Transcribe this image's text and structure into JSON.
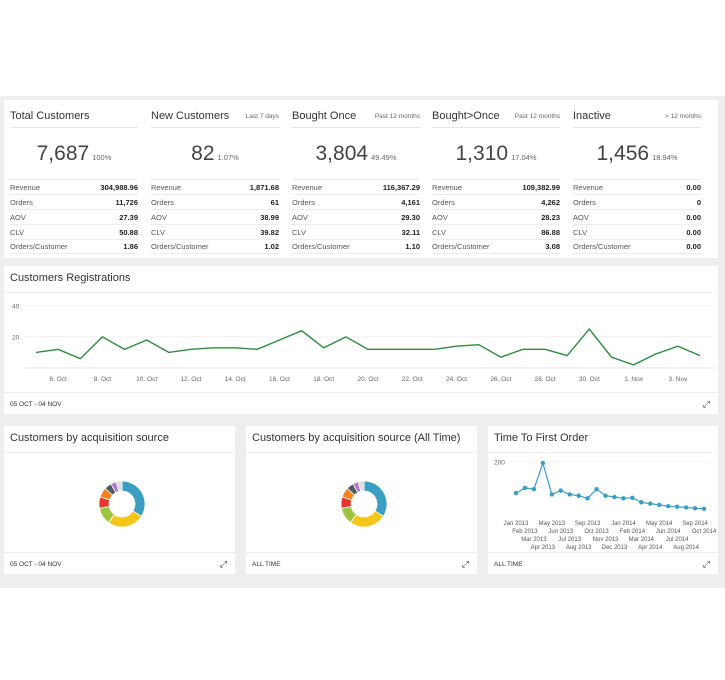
{
  "stats": [
    {
      "title": "Total Customers",
      "period": "",
      "value": "7,687",
      "pct": "100%",
      "rows": [
        [
          "Revenue",
          "304,988.96"
        ],
        [
          "Orders",
          "11,726"
        ],
        [
          "AOV",
          "27.39"
        ],
        [
          "CLV",
          "50.88"
        ],
        [
          "Orders/Customer",
          "1.86"
        ]
      ]
    },
    {
      "title": "New Customers",
      "period": "Last 7 days",
      "value": "82",
      "pct": "1.07%",
      "rows": [
        [
          "Revenue",
          "1,871.68"
        ],
        [
          "Orders",
          "61"
        ],
        [
          "AOV",
          "38.99"
        ],
        [
          "CLV",
          "39.82"
        ],
        [
          "Orders/Customer",
          "1.02"
        ]
      ]
    },
    {
      "title": "Bought Once",
      "period": "Past 12 months",
      "value": "3,804",
      "pct": "49.49%",
      "rows": [
        [
          "Revenue",
          "116,367.29"
        ],
        [
          "Orders",
          "4,161"
        ],
        [
          "AOV",
          "29.30"
        ],
        [
          "CLV",
          "32.11"
        ],
        [
          "Orders/Customer",
          "1.10"
        ]
      ]
    },
    {
      "title": "Bought>Once",
      "period": "Past 12 months",
      "value": "1,310",
      "pct": "17.04%",
      "rows": [
        [
          "Revenue",
          "109,382.99"
        ],
        [
          "Orders",
          "4,262"
        ],
        [
          "AOV",
          "28.23"
        ],
        [
          "CLV",
          "86.88"
        ],
        [
          "Orders/Customer",
          "3.08"
        ]
      ]
    },
    {
      "title": "Inactive",
      "period": "> 12 months",
      "value": "1,456",
      "pct": "18.94%",
      "rows": [
        [
          "Revenue",
          "0.00"
        ],
        [
          "Orders",
          "0"
        ],
        [
          "AOV",
          "0.00"
        ],
        [
          "CLV",
          "0.00"
        ],
        [
          "Orders/Customer",
          "0.00"
        ]
      ]
    }
  ],
  "registrations": {
    "title": "Customers Registrations",
    "footer": "05 OCT - 04 NOV",
    "expand_icon": "expand-icon"
  },
  "acquisition": {
    "title": "Customers by acquisition source",
    "footer": "05 OCT - 04 NOV"
  },
  "acquisition_all": {
    "title": "Customers by acquisition source (All Time)",
    "footer": "ALL TIME"
  },
  "ttfo": {
    "title": "Time To First Order",
    "footer": "ALL TIME"
  },
  "colors": {
    "line_green": "#2e8b3e",
    "ttfo_blue": "#3a9ec2",
    "donut": [
      "#3a9ec2",
      "#f5c518",
      "#9bc53d",
      "#e8352e",
      "#f5821f",
      "#4c5a63",
      "#b07cc6",
      "#dddddd"
    ]
  },
  "chart_data": [
    {
      "type": "line",
      "x": [
        "5. Oct",
        "6. Oct",
        "7. Oct",
        "8. Oct",
        "9. Oct",
        "10. Oct",
        "11. Oct",
        "12. Oct",
        "13. Oct",
        "14. Oct",
        "15. Oct",
        "16. Oct",
        "17. Oct",
        "18. Oct",
        "19. Oct",
        "20. Oct",
        "21. Oct",
        "22. Oct",
        "23. Oct",
        "24. Oct",
        "25. Oct",
        "26. Oct",
        "27. Oct",
        "28. Oct",
        "29. Oct",
        "30. Oct",
        "31. Oct",
        "1. Nov",
        "2. Nov",
        "3. Nov",
        "4. Nov"
      ],
      "xticks": [
        "6. Oct",
        "8. Oct",
        "10. Oct",
        "12. Oct",
        "14. Oct",
        "16. Oct",
        "18. Oct",
        "20. Oct",
        "22. Oct",
        "24. Oct",
        "26. Oct",
        "28. Oct",
        "30. Oct",
        "1. Nov",
        "3. Nov"
      ],
      "values": [
        10,
        12,
        6,
        20,
        12,
        18,
        10,
        12,
        13,
        13,
        12,
        18,
        24,
        13,
        20,
        12,
        12,
        12,
        12,
        14,
        15,
        7,
        12,
        12,
        8,
        25,
        7,
        2,
        9,
        14,
        8
      ],
      "ylim": [
        0,
        45
      ],
      "yticks": [
        20,
        40
      ]
    },
    {
      "type": "pie",
      "variant": "donut",
      "values": [
        34,
        26,
        12,
        8,
        7,
        5,
        4,
        4
      ]
    },
    {
      "type": "pie",
      "variant": "donut",
      "values": [
        34,
        26,
        12,
        8,
        7,
        5,
        4,
        4
      ]
    },
    {
      "type": "line",
      "x": [
        "Jan 2013",
        "Feb 2013",
        "Mar 2013",
        "Apr 2013",
        "May 2013",
        "Jun 2013",
        "Jul 2013",
        "Aug 2013",
        "Sep 2013",
        "Oct 2013",
        "Nov 2013",
        "Dec 2013",
        "Jan 2014",
        "Feb 2014",
        "Mar 2014",
        "Apr 2014",
        "May 2014",
        "Jun 2014",
        "Jul 2014",
        "Aug 2014",
        "Sep 2014",
        "Oct 2014"
      ],
      "values": [
        80,
        100,
        95,
        195,
        75,
        90,
        75,
        70,
        60,
        95,
        70,
        65,
        60,
        62,
        45,
        40,
        35,
        30,
        28,
        25,
        22,
        20
      ],
      "ylim": [
        0,
        230
      ],
      "yticks": [
        200
      ]
    }
  ]
}
